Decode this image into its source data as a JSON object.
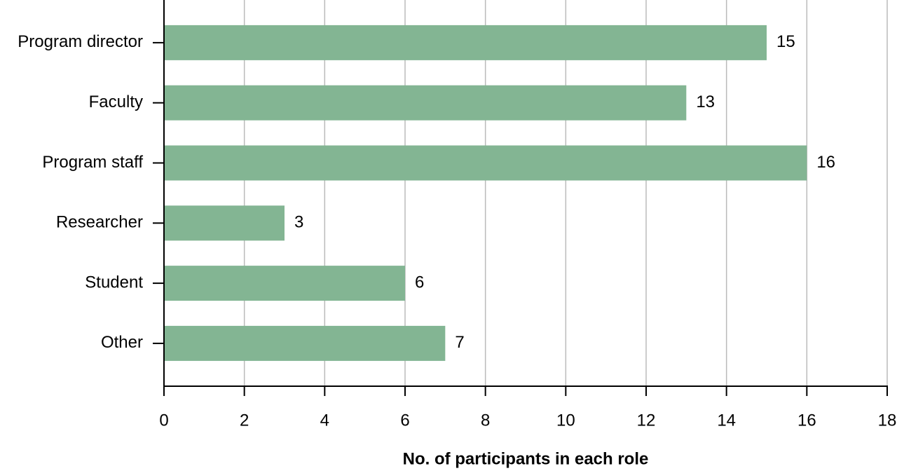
{
  "chart_data": {
    "type": "bar",
    "orientation": "horizontal",
    "xlabel": "No. of participants in each role",
    "categories": [
      "Program director",
      "Faculty",
      "Program staff",
      "Researcher",
      "Student",
      "Other"
    ],
    "values": [
      15,
      13,
      16,
      3,
      6,
      7
    ],
    "color": "#83b593",
    "xlim": [
      0,
      18
    ],
    "xticks": [
      0,
      2,
      4,
      6,
      8,
      10,
      12,
      14,
      16,
      18
    ],
    "grid": true
  }
}
